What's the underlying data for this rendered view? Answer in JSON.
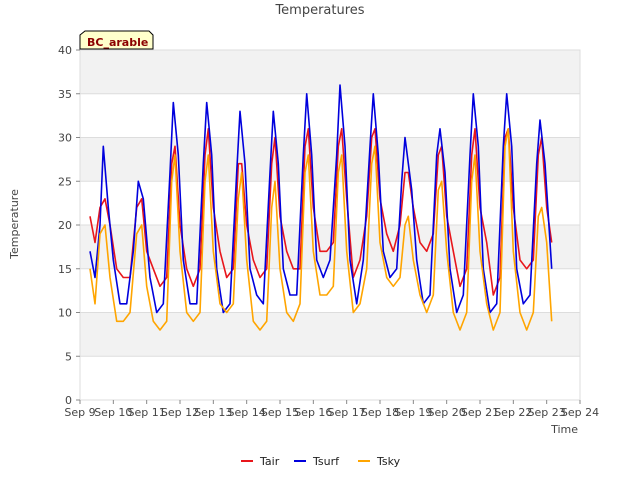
{
  "chart_data": {
    "type": "line",
    "title": "Temperatures",
    "xlabel": "Time",
    "ylabel": "Temperature",
    "badge": "BC_arable",
    "ylim": [
      0,
      40
    ],
    "yticks": [
      0,
      5,
      10,
      15,
      20,
      25,
      30,
      35,
      40
    ],
    "xlim": [
      9,
      24
    ],
    "xticks": [
      9,
      10,
      11,
      12,
      13,
      14,
      15,
      16,
      17,
      18,
      19,
      20,
      21,
      22,
      23,
      24
    ],
    "xtick_labels": [
      "Sep 9",
      "Sep 10",
      "Sep 11",
      "Sep 12",
      "Sep 13",
      "Sep 14",
      "Sep 15",
      "Sep 16",
      "Sep 17",
      "Sep 18",
      "Sep 19",
      "Sep 20",
      "Sep 21",
      "Sep 22",
      "Sep 23",
      "Sep 24"
    ],
    "grid": true,
    "legend_position": "bottom",
    "x_unit": "day of September",
    "series": [
      {
        "name": "Tair",
        "color": "#e8161b",
        "points": [
          [
            9.3,
            21
          ],
          [
            9.45,
            18
          ],
          [
            9.6,
            22
          ],
          [
            9.75,
            23
          ],
          [
            9.9,
            20
          ],
          [
            10.1,
            15
          ],
          [
            10.3,
            14
          ],
          [
            10.5,
            14
          ],
          [
            10.7,
            22
          ],
          [
            10.85,
            23
          ],
          [
            11.0,
            17
          ],
          [
            11.2,
            15
          ],
          [
            11.4,
            13
          ],
          [
            11.6,
            14
          ],
          [
            11.75,
            27
          ],
          [
            11.85,
            29
          ],
          [
            12.0,
            20
          ],
          [
            12.2,
            15
          ],
          [
            12.4,
            13
          ],
          [
            12.6,
            15
          ],
          [
            12.75,
            28
          ],
          [
            12.85,
            31
          ],
          [
            13.0,
            22
          ],
          [
            13.2,
            17
          ],
          [
            13.4,
            14
          ],
          [
            13.6,
            15
          ],
          [
            13.75,
            27
          ],
          [
            13.85,
            27
          ],
          [
            14.0,
            20
          ],
          [
            14.2,
            16
          ],
          [
            14.4,
            14
          ],
          [
            14.6,
            15
          ],
          [
            14.75,
            27
          ],
          [
            14.85,
            30
          ],
          [
            15.0,
            21
          ],
          [
            15.2,
            17
          ],
          [
            15.4,
            15
          ],
          [
            15.6,
            15
          ],
          [
            15.75,
            29
          ],
          [
            15.85,
            31
          ],
          [
            16.0,
            22
          ],
          [
            16.2,
            17
          ],
          [
            16.4,
            17
          ],
          [
            16.6,
            18
          ],
          [
            16.75,
            29
          ],
          [
            16.85,
            31
          ],
          [
            17.0,
            23
          ],
          [
            17.2,
            14
          ],
          [
            17.4,
            16
          ],
          [
            17.6,
            21
          ],
          [
            17.75,
            30
          ],
          [
            17.85,
            31
          ],
          [
            18.0,
            23
          ],
          [
            18.2,
            19
          ],
          [
            18.4,
            17
          ],
          [
            18.6,
            20
          ],
          [
            18.75,
            26
          ],
          [
            18.85,
            26
          ],
          [
            19.0,
            22
          ],
          [
            19.2,
            18
          ],
          [
            19.4,
            17
          ],
          [
            19.6,
            19
          ],
          [
            19.75,
            28
          ],
          [
            19.85,
            29
          ],
          [
            20.0,
            21
          ],
          [
            20.2,
            17
          ],
          [
            20.4,
            13
          ],
          [
            20.6,
            15
          ],
          [
            20.75,
            28
          ],
          [
            20.85,
            31
          ],
          [
            21.0,
            22
          ],
          [
            21.2,
            18
          ],
          [
            21.4,
            12
          ],
          [
            21.6,
            14
          ],
          [
            21.75,
            30
          ],
          [
            21.85,
            31
          ],
          [
            22.0,
            22
          ],
          [
            22.2,
            16
          ],
          [
            22.4,
            15
          ],
          [
            22.6,
            16
          ],
          [
            22.75,
            28
          ],
          [
            22.85,
            30
          ],
          [
            23.0,
            22
          ],
          [
            23.15,
            18
          ]
        ]
      },
      {
        "name": "Tsurf",
        "color": "#0000dd",
        "points": [
          [
            9.3,
            17
          ],
          [
            9.45,
            14
          ],
          [
            9.6,
            20
          ],
          [
            9.7,
            29
          ],
          [
            9.85,
            22
          ],
          [
            10.0,
            16
          ],
          [
            10.2,
            11
          ],
          [
            10.4,
            11
          ],
          [
            10.6,
            17
          ],
          [
            10.75,
            25
          ],
          [
            10.9,
            23
          ],
          [
            11.1,
            14
          ],
          [
            11.3,
            10
          ],
          [
            11.5,
            11
          ],
          [
            11.7,
            26
          ],
          [
            11.8,
            34
          ],
          [
            11.95,
            28
          ],
          [
            12.1,
            16
          ],
          [
            12.3,
            11
          ],
          [
            12.5,
            11
          ],
          [
            12.7,
            27
          ],
          [
            12.8,
            34
          ],
          [
            12.95,
            28
          ],
          [
            13.1,
            15
          ],
          [
            13.3,
            10
          ],
          [
            13.5,
            11
          ],
          [
            13.7,
            26
          ],
          [
            13.8,
            33
          ],
          [
            13.95,
            27
          ],
          [
            14.1,
            15
          ],
          [
            14.3,
            12
          ],
          [
            14.5,
            11
          ],
          [
            14.7,
            26
          ],
          [
            14.8,
            33
          ],
          [
            14.95,
            27
          ],
          [
            15.1,
            15
          ],
          [
            15.3,
            12
          ],
          [
            15.5,
            12
          ],
          [
            15.7,
            28
          ],
          [
            15.8,
            35
          ],
          [
            15.95,
            28
          ],
          [
            16.1,
            16
          ],
          [
            16.3,
            14
          ],
          [
            16.5,
            16
          ],
          [
            16.7,
            28
          ],
          [
            16.8,
            36
          ],
          [
            16.95,
            29
          ],
          [
            17.1,
            16
          ],
          [
            17.3,
            11
          ],
          [
            17.5,
            16
          ],
          [
            17.7,
            29
          ],
          [
            17.8,
            35
          ],
          [
            17.95,
            28
          ],
          [
            18.1,
            17
          ],
          [
            18.3,
            14
          ],
          [
            18.5,
            15
          ],
          [
            18.65,
            25
          ],
          [
            18.75,
            30
          ],
          [
            18.95,
            24
          ],
          [
            19.1,
            16
          ],
          [
            19.3,
            11
          ],
          [
            19.5,
            12
          ],
          [
            19.7,
            28
          ],
          [
            19.8,
            31
          ],
          [
            19.95,
            26
          ],
          [
            20.1,
            15
          ],
          [
            20.3,
            10
          ],
          [
            20.5,
            12
          ],
          [
            20.7,
            28
          ],
          [
            20.8,
            35
          ],
          [
            20.95,
            29
          ],
          [
            21.1,
            15
          ],
          [
            21.3,
            10
          ],
          [
            21.5,
            11
          ],
          [
            21.7,
            29
          ],
          [
            21.8,
            35
          ],
          [
            21.95,
            29
          ],
          [
            22.1,
            15
          ],
          [
            22.3,
            11
          ],
          [
            22.5,
            12
          ],
          [
            22.7,
            27
          ],
          [
            22.8,
            32
          ],
          [
            22.95,
            27
          ],
          [
            23.15,
            15
          ]
        ]
      },
      {
        "name": "Tsky",
        "color": "#ffa500",
        "points": [
          [
            9.3,
            15
          ],
          [
            9.45,
            11
          ],
          [
            9.6,
            19
          ],
          [
            9.75,
            20
          ],
          [
            9.9,
            14
          ],
          [
            10.1,
            9
          ],
          [
            10.3,
            9
          ],
          [
            10.5,
            10
          ],
          [
            10.7,
            19
          ],
          [
            10.85,
            20
          ],
          [
            11.0,
            13
          ],
          [
            11.2,
            9
          ],
          [
            11.4,
            8
          ],
          [
            11.6,
            9
          ],
          [
            11.75,
            25
          ],
          [
            11.85,
            28
          ],
          [
            12.0,
            17
          ],
          [
            12.2,
            10
          ],
          [
            12.4,
            9
          ],
          [
            12.6,
            10
          ],
          [
            12.75,
            25
          ],
          [
            12.85,
            28
          ],
          [
            13.0,
            17
          ],
          [
            13.2,
            11
          ],
          [
            13.4,
            10
          ],
          [
            13.6,
            11
          ],
          [
            13.75,
            23
          ],
          [
            13.85,
            26
          ],
          [
            14.0,
            16
          ],
          [
            14.2,
            9
          ],
          [
            14.4,
            8
          ],
          [
            14.6,
            9
          ],
          [
            14.75,
            22
          ],
          [
            14.85,
            25
          ],
          [
            15.0,
            15
          ],
          [
            15.2,
            10
          ],
          [
            15.4,
            9
          ],
          [
            15.6,
            11
          ],
          [
            15.75,
            26
          ],
          [
            15.85,
            28
          ],
          [
            16.0,
            17
          ],
          [
            16.2,
            12
          ],
          [
            16.4,
            12
          ],
          [
            16.6,
            13
          ],
          [
            16.75,
            26
          ],
          [
            16.85,
            28
          ],
          [
            17.0,
            17
          ],
          [
            17.2,
            10
          ],
          [
            17.4,
            11
          ],
          [
            17.6,
            15
          ],
          [
            17.75,
            27
          ],
          [
            17.85,
            29
          ],
          [
            18.0,
            18
          ],
          [
            18.2,
            14
          ],
          [
            18.4,
            13
          ],
          [
            18.6,
            14
          ],
          [
            18.75,
            20
          ],
          [
            18.85,
            21
          ],
          [
            19.0,
            16
          ],
          [
            19.2,
            12
          ],
          [
            19.4,
            10
          ],
          [
            19.6,
            12
          ],
          [
            19.75,
            24
          ],
          [
            19.85,
            25
          ],
          [
            20.0,
            17
          ],
          [
            20.2,
            10
          ],
          [
            20.4,
            8
          ],
          [
            20.6,
            10
          ],
          [
            20.75,
            25
          ],
          [
            20.85,
            28
          ],
          [
            21.0,
            17
          ],
          [
            21.2,
            11
          ],
          [
            21.4,
            8
          ],
          [
            21.6,
            10
          ],
          [
            21.75,
            29
          ],
          [
            21.85,
            31
          ],
          [
            22.0,
            17
          ],
          [
            22.2,
            10
          ],
          [
            22.4,
            8
          ],
          [
            22.6,
            10
          ],
          [
            22.75,
            21
          ],
          [
            22.85,
            22
          ],
          [
            23.0,
            18
          ],
          [
            23.15,
            9
          ]
        ]
      }
    ]
  }
}
